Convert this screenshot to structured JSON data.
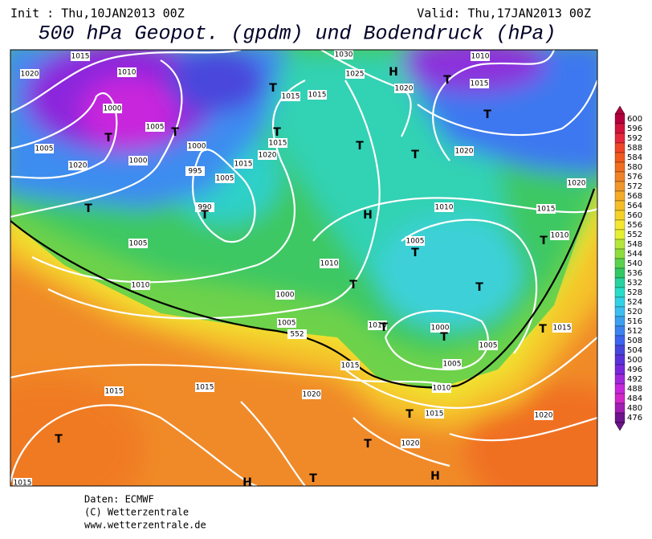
{
  "header": {
    "init": "Init : Thu,10JAN2013 00Z",
    "valid": "Valid: Thu,17JAN2013 00Z",
    "title": "500 hPa Geopot. (gpdm) und Bodendruck (hPa)"
  },
  "map": {
    "labels": [
      "1015",
      "1010",
      "1020",
      "1000",
      "1005",
      "1005",
      "1000",
      "1020",
      "T",
      "T",
      "T",
      "1000",
      "995",
      "990",
      "T",
      "1005",
      "1015",
      "1020",
      "1015",
      "T",
      "T",
      "1015",
      "1015",
      "1030",
      "1025",
      "H",
      "1020",
      "T",
      "1010",
      "1015",
      "T",
      "1020",
      "T",
      "T",
      "1020",
      "1015",
      "1010",
      "H",
      "1010",
      "1005",
      "T",
      "T",
      "T",
      "1000",
      "1005",
      "552",
      "1010",
      "1005",
      "1010",
      "T",
      "1000",
      "T",
      "1005",
      "1005",
      "1010",
      "1015",
      "1015",
      "1015",
      "1020",
      "T",
      "1015",
      "1020",
      "1020",
      "T",
      "T",
      "T",
      "H",
      "H",
      "1015",
      "1010",
      "T",
      "T",
      "1015"
    ]
  },
  "legend": {
    "values": [
      600,
      596,
      592,
      588,
      584,
      580,
      576,
      572,
      568,
      564,
      560,
      556,
      552,
      548,
      544,
      540,
      536,
      532,
      528,
      524,
      520,
      516,
      512,
      508,
      504,
      500,
      496,
      492,
      488,
      484,
      480,
      476
    ],
    "colors": [
      "#b4003c",
      "#d2143c",
      "#e6283c",
      "#f04628",
      "#f05a1e",
      "#f06e1e",
      "#f08228",
      "#f0962a",
      "#f5aa28",
      "#f5be28",
      "#f5d228",
      "#f5e632",
      "#e6f032",
      "#b4e63c",
      "#8cdc3c",
      "#5ad250",
      "#32c864",
      "#28d2a0",
      "#28dcc8",
      "#32d2e6",
      "#3cbef0",
      "#3ca0f0",
      "#3c82f0",
      "#3c64f0",
      "#4646dc",
      "#5a32dc",
      "#7828dc",
      "#a028dc",
      "#c828dc",
      "#d228c8",
      "#a01eb4",
      "#6e148c"
    ]
  },
  "footer": {
    "lines": [
      "Daten: ECMWF",
      "(C) Wetterzentrale",
      "www.wetterzentrale.de"
    ]
  }
}
